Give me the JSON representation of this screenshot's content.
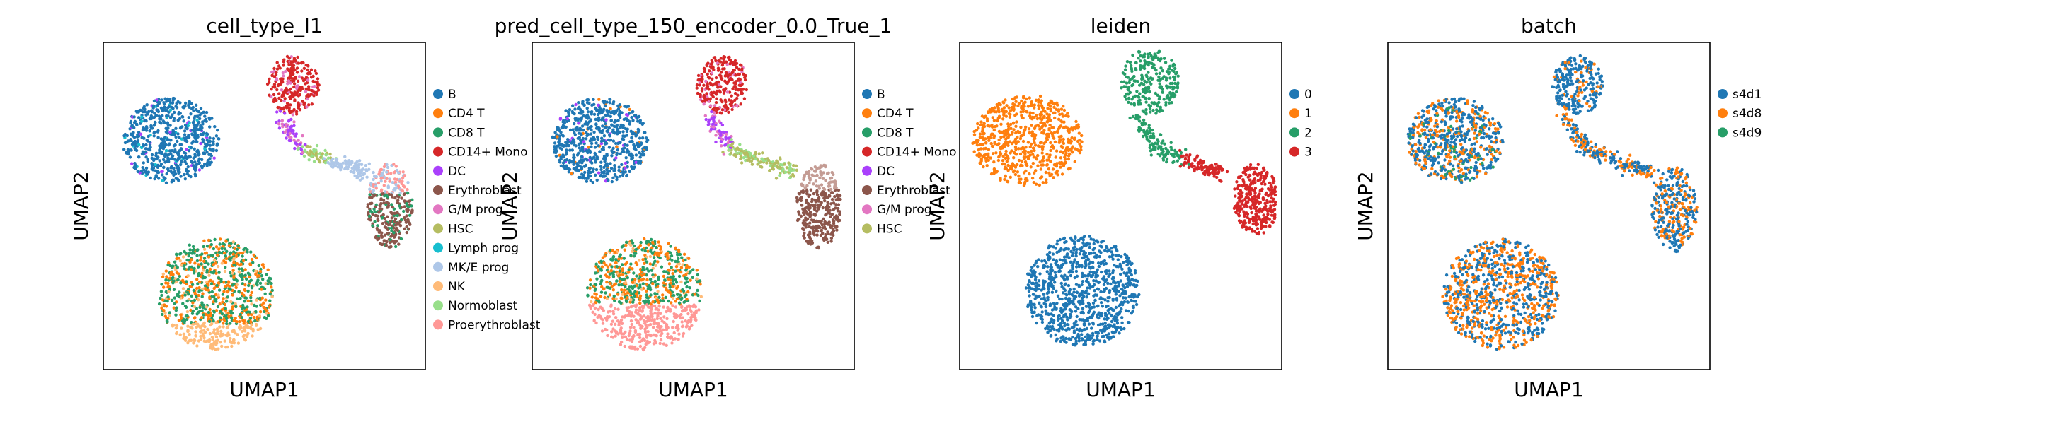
{
  "chart_data": [
    {
      "type": "scatter",
      "title": "cell_type_l1",
      "xlabel": "UMAP1",
      "ylabel": "UMAP2",
      "grid": false,
      "ticks": false,
      "legend_position": "right",
      "legend": [
        {
          "label": "B",
          "color": "#1f77b4"
        },
        {
          "label": "CD4 T",
          "color": "#ff7f0e"
        },
        {
          "label": "CD8 T",
          "color": "#279e68"
        },
        {
          "label": "CD14+ Mono",
          "color": "#d62728"
        },
        {
          "label": "DC",
          "color": "#aa40fc"
        },
        {
          "label": "Erythroblast",
          "color": "#8c564b"
        },
        {
          "label": "G/M prog",
          "color": "#e377c2"
        },
        {
          "label": "HSC",
          "color": "#b5bd61"
        },
        {
          "label": "Lymph prog",
          "color": "#17becf"
        },
        {
          "label": "MK/E prog",
          "color": "#aec7e8"
        },
        {
          "label": "NK",
          "color": "#ffbb78"
        },
        {
          "label": "Normoblast",
          "color": "#98df8a"
        },
        {
          "label": "Proerythroblast",
          "color": "#ff9896"
        }
      ]
    },
    {
      "type": "scatter",
      "title": "pred_cell_type_150_encoder_0.0_True_1",
      "xlabel": "UMAP1",
      "ylabel": "UMAP2",
      "grid": false,
      "ticks": false,
      "legend_position": "right",
      "legend": [
        {
          "label": "B",
          "color": "#1f77b4"
        },
        {
          "label": "CD4 T",
          "color": "#ff7f0e"
        },
        {
          "label": "CD8 T",
          "color": "#279e68"
        },
        {
          "label": "CD14+ Mono",
          "color": "#d62728"
        },
        {
          "label": "DC",
          "color": "#aa40fc"
        },
        {
          "label": "Erythroblast",
          "color": "#8c564b"
        },
        {
          "label": "G/M prog",
          "color": "#e377c2"
        },
        {
          "label": "HSC",
          "color": "#b5bd61"
        }
      ]
    },
    {
      "type": "scatter",
      "title": "leiden",
      "xlabel": "UMAP1",
      "ylabel": "UMAP2",
      "grid": false,
      "ticks": false,
      "legend_position": "right",
      "legend": [
        {
          "label": "0",
          "color": "#1f77b4"
        },
        {
          "label": "1",
          "color": "#ff7f0e"
        },
        {
          "label": "2",
          "color": "#279e68"
        },
        {
          "label": "3",
          "color": "#d62728"
        }
      ]
    },
    {
      "type": "scatter",
      "title": "batch",
      "xlabel": "UMAP1",
      "ylabel": "UMAP2",
      "grid": false,
      "ticks": false,
      "legend_position": "right",
      "legend": [
        {
          "label": "s4d1",
          "color": "#1f77b4"
        },
        {
          "label": "s4d8",
          "color": "#ff7f0e"
        },
        {
          "label": "s4d9",
          "color": "#279e68"
        }
      ]
    }
  ]
}
